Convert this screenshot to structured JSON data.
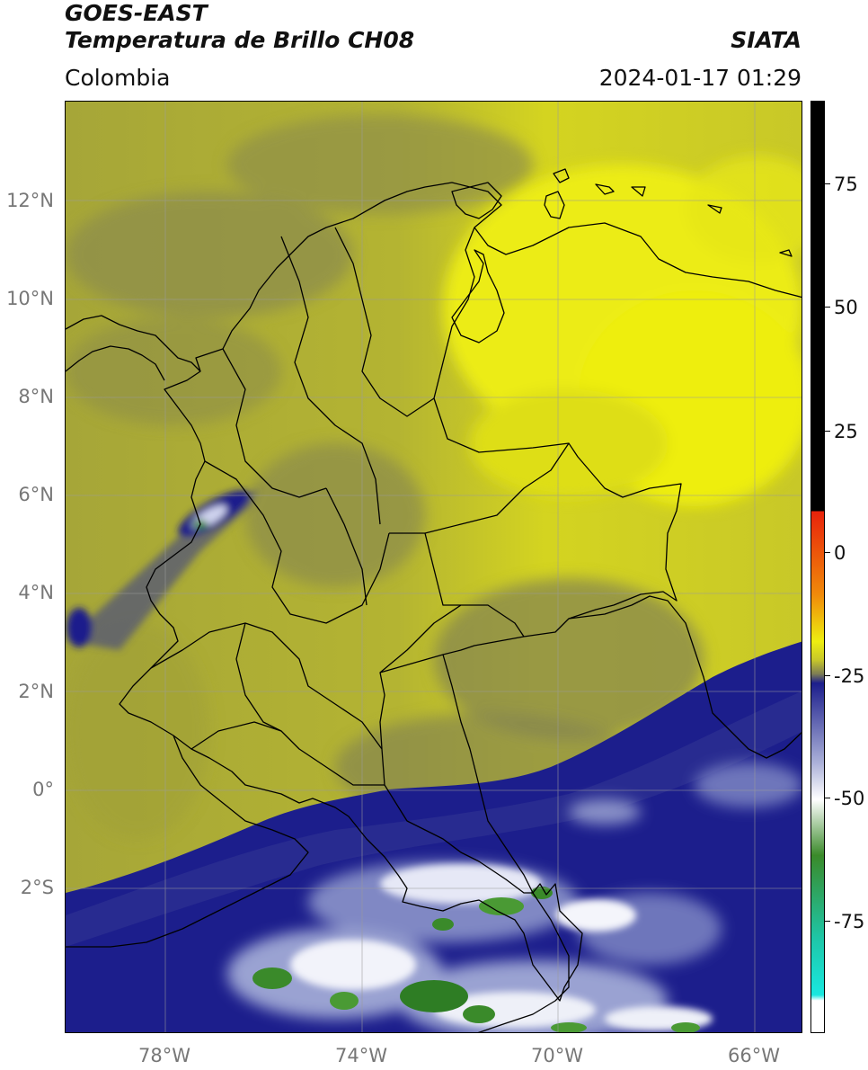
{
  "header": {
    "title_line1": "GOES-EAST",
    "title_line2": "Temperatura de Brillo CH08",
    "region": "Colombia",
    "brand": "SIATA",
    "datetime": "2024-01-17 01:29"
  },
  "map": {
    "lat_labels": [
      "12°N",
      "10°N",
      "8°N",
      "6°N",
      "4°N",
      "2°N",
      "0°",
      "2°S"
    ],
    "lon_labels": [
      "78°W",
      "74°W",
      "70°W",
      "66°W"
    ],
    "gridlines": true
  },
  "colorbar": {
    "labels": [
      "75",
      "50",
      "25",
      "0",
      "-25",
      "-50",
      "-75"
    ],
    "colors": {
      "black": "#000000",
      "red": "#e8220b",
      "orange": "#f08a0a",
      "yellow": "#eeee10",
      "olive": "#c7c72a",
      "dark_olive": "#7d7d55",
      "navy": "#1c1e8c",
      "lavender": "#aab0d8",
      "white": "#ffffff",
      "green": "#3a8a2a",
      "teal": "#1ec7a8",
      "cyan": "#19e8e0"
    }
  }
}
